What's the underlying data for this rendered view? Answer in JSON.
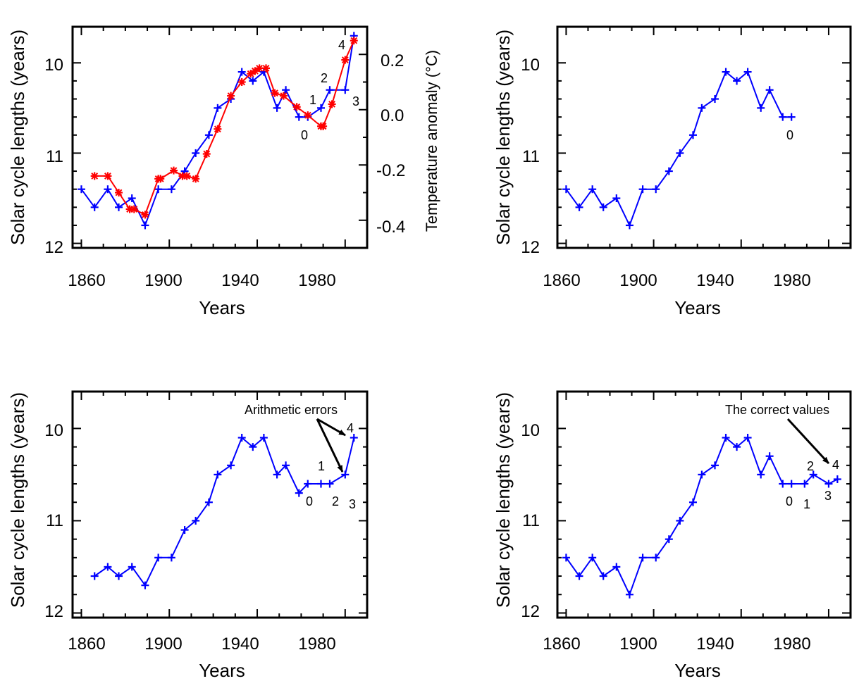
{
  "colors": {
    "solar": "#0000ff",
    "temperature": "#ff0000",
    "axis": "#000000"
  },
  "chart_data": [
    {
      "type": "line",
      "xlabel": "Years",
      "ylabel": "Solar cycle lengths (years)",
      "y2label": "Temperature anomaly  (°C)",
      "xlim": [
        1856,
        1990
      ],
      "ylim": [
        12.05,
        9.6
      ],
      "y2lim": [
        -0.5,
        0.3
      ],
      "xticks": [
        "1860",
        "1900",
        "1940",
        "1980"
      ],
      "yticks": [
        "10",
        "11",
        "12"
      ],
      "y2ticks": [
        "-0.4",
        "-0.2",
        "0.0",
        "0.2"
      ],
      "series": [
        {
          "key": "solar",
          "x": [
            1860,
            1866,
            1872,
            1877,
            1883,
            1889,
            1895,
            1901,
            1907,
            1912,
            1918,
            1922,
            1928,
            1933,
            1938,
            1943,
            1949,
            1953,
            1959,
            1963,
            1969,
            1973,
            1980,
            1984
          ],
          "y": [
            11.4,
            11.6,
            11.4,
            11.6,
            11.5,
            11.8,
            11.4,
            11.4,
            11.2,
            11.0,
            10.8,
            10.5,
            10.4,
            10.1,
            10.2,
            10.1,
            10.5,
            10.3,
            10.6,
            10.6,
            10.5,
            10.3,
            10.3,
            9.7
          ]
        },
        {
          "key": "temperature",
          "axis": "y2",
          "x": [
            1866,
            1872,
            1877,
            1882,
            1884,
            1889,
            1895,
            1896,
            1902,
            1906,
            1908,
            1912,
            1917,
            1922,
            1928,
            1933,
            1937,
            1939,
            1941,
            1944,
            1948,
            1952,
            1958,
            1963,
            1969,
            1970,
            1974,
            1980,
            1984
          ],
          "y": [
            -0.24,
            -0.24,
            -0.3,
            -0.36,
            -0.36,
            -0.38,
            -0.25,
            -0.25,
            -0.22,
            -0.24,
            -0.24,
            -0.25,
            -0.16,
            -0.07,
            0.05,
            0.1,
            0.13,
            0.14,
            0.15,
            0.15,
            0.06,
            0.05,
            0.01,
            -0.02,
            -0.06,
            -0.06,
            0.02,
            0.18,
            0.25
          ]
        }
      ],
      "annotations": [
        {
          "text": "0",
          "x": 1963,
          "y": 10.6
        },
        {
          "text": "1",
          "x": 1973,
          "y": 10.3
        },
        {
          "text": "2",
          "x": 1973,
          "y": 10.3
        },
        {
          "text": "3",
          "x": 1980,
          "y": 10.3
        },
        {
          "text": "4",
          "x": 1984,
          "y": 9.7
        }
      ]
    },
    {
      "type": "line",
      "xlabel": "Years",
      "ylabel": "Solar cycle lengths (years)",
      "xlim": [
        1856,
        1990
      ],
      "ylim": [
        12.05,
        9.6
      ],
      "xticks": [
        "1860",
        "1900",
        "1940",
        "1980"
      ],
      "yticks": [
        "10",
        "11",
        "12"
      ],
      "series": [
        {
          "key": "solar",
          "x": [
            1860,
            1866,
            1872,
            1877,
            1883,
            1889,
            1895,
            1901,
            1907,
            1912,
            1918,
            1922,
            1928,
            1933,
            1938,
            1943,
            1949,
            1953,
            1959,
            1963
          ],
          "y": [
            11.4,
            11.6,
            11.4,
            11.6,
            11.5,
            11.8,
            11.4,
            11.4,
            11.2,
            11.0,
            10.8,
            10.5,
            10.4,
            10.1,
            10.2,
            10.1,
            10.5,
            10.3,
            10.6,
            10.6
          ]
        }
      ],
      "annotations": [
        {
          "text": "0",
          "x": 1963,
          "y": 10.6
        }
      ]
    },
    {
      "type": "line",
      "xlabel": "Years",
      "ylabel": "Solar cycle lengths (years)",
      "xlim": [
        1856,
        1990
      ],
      "ylim": [
        12.05,
        9.6
      ],
      "xticks": [
        "1860",
        "1900",
        "1940",
        "1980"
      ],
      "yticks": [
        "10",
        "11",
        "12"
      ],
      "series": [
        {
          "key": "solar",
          "x": [
            1866,
            1872,
            1877,
            1883,
            1889,
            1895,
            1901,
            1907,
            1912,
            1918,
            1922,
            1928,
            1933,
            1938,
            1943,
            1949,
            1953,
            1959,
            1963,
            1969,
            1973,
            1980,
            1984
          ],
          "y": [
            11.6,
            11.5,
            11.6,
            11.5,
            11.7,
            11.4,
            11.4,
            11.1,
            11.0,
            10.8,
            10.5,
            10.4,
            10.1,
            10.2,
            10.1,
            10.5,
            10.4,
            10.7,
            10.6,
            10.6,
            10.6,
            10.5,
            10.1
          ]
        }
      ],
      "annotations": [
        {
          "text": "Arithmetic errors",
          "x": 1951,
          "y": 9.79
        },
        {
          "text": "0",
          "x": 1963,
          "y": 10.6
        },
        {
          "text": "1",
          "x": 1969,
          "y": 10.6
        },
        {
          "text": "2",
          "x": 1973,
          "y": 10.6
        },
        {
          "text": "3",
          "x": 1980,
          "y": 10.5
        },
        {
          "text": "4",
          "x": 1984,
          "y": 10.1
        }
      ]
    },
    {
      "type": "line",
      "xlabel": "Years",
      "ylabel": "Solar cycle lengths (years)",
      "xlim": [
        1856,
        1990
      ],
      "ylim": [
        12.05,
        9.6
      ],
      "xticks": [
        "1860",
        "1900",
        "1940",
        "1980"
      ],
      "yticks": [
        "10",
        "11",
        "12"
      ],
      "series": [
        {
          "key": "solar",
          "x": [
            1860,
            1866,
            1872,
            1877,
            1883,
            1889,
            1895,
            1901,
            1907,
            1912,
            1918,
            1922,
            1928,
            1933,
            1938,
            1943,
            1949,
            1953,
            1959,
            1963,
            1969,
            1973,
            1980,
            1984
          ],
          "y": [
            11.4,
            11.6,
            11.4,
            11.6,
            11.5,
            11.8,
            11.4,
            11.4,
            11.2,
            11.0,
            10.8,
            10.5,
            10.4,
            10.1,
            10.2,
            10.1,
            10.5,
            10.3,
            10.6,
            10.6,
            10.6,
            10.5,
            10.6,
            10.55
          ]
        }
      ],
      "annotations": [
        {
          "text": "The correct values",
          "x": 1951,
          "y": 9.79
        },
        {
          "text": "0",
          "x": 1962,
          "y": 10.6
        },
        {
          "text": "1",
          "x": 1969,
          "y": 10.6
        },
        {
          "text": "2",
          "x": 1973,
          "y": 10.5
        },
        {
          "text": "3",
          "x": 1980,
          "y": 10.6
        },
        {
          "text": "4",
          "x": 1984,
          "y": 10.55
        }
      ]
    }
  ]
}
